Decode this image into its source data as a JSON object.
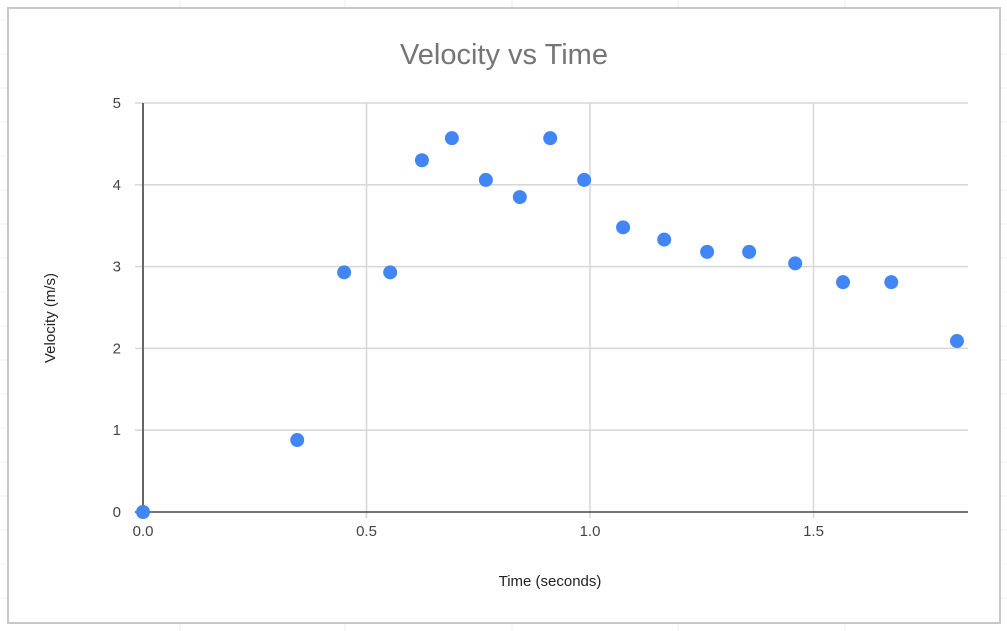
{
  "chart_data": {
    "type": "scatter",
    "title": "Velocity vs Time",
    "xlabel": "Time (seconds)",
    "ylabel": "Velocity (m/s)",
    "xlim": [
      0,
      1.85
    ],
    "ylim": [
      0,
      5
    ],
    "grid": true,
    "legend": "none",
    "x_ticks": [
      "0.0",
      "0.5",
      "1.0",
      "1.5"
    ],
    "y_ticks": [
      "0",
      "1",
      "2",
      "3",
      "4",
      "5"
    ],
    "marker_color": "#4285f4",
    "points": [
      [
        0,
        0
      ],
      [
        0.345,
        0.88
      ],
      [
        0.45,
        2.93
      ],
      [
        0.553,
        2.93
      ],
      [
        0.624,
        4.3
      ],
      [
        0.691,
        4.57
      ],
      [
        0.767,
        4.06
      ],
      [
        0.843,
        3.85
      ],
      [
        0.911,
        4.57
      ],
      [
        0.987,
        4.06
      ],
      [
        1.074,
        3.48
      ],
      [
        1.166,
        3.33
      ],
      [
        1.262,
        3.18
      ],
      [
        1.356,
        3.18
      ],
      [
        1.459,
        3.04
      ],
      [
        1.566,
        2.81
      ],
      [
        1.674,
        2.81
      ],
      [
        1.821,
        2.09
      ]
    ]
  }
}
